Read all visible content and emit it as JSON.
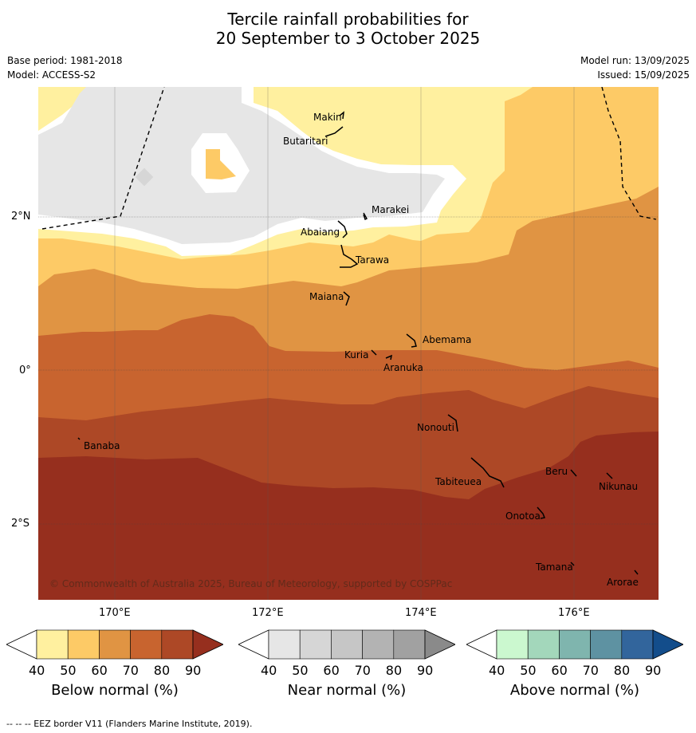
{
  "title_line1": "Tercile rainfall probabilities for",
  "title_line2": "20 September to 3 October 2025",
  "base_period": "Base period: 1981-2018",
  "model": "Model: ACCESS-S2",
  "model_run": "Model run: 13/09/2025",
  "issued": "Issued: 15/09/2025",
  "copyright": "© Commonwealth of Australia 2025, Bureau of Meteorology, supported by COSPPac",
  "lat_labels": [
    "2°N",
    "0°",
    "2°S"
  ],
  "lon_labels": [
    "170°E",
    "172°E",
    "174°E",
    "176°E"
  ],
  "places": [
    {
      "name": "Makin"
    },
    {
      "name": "Butaritari"
    },
    {
      "name": "Marakei"
    },
    {
      "name": "Abaiang"
    },
    {
      "name": "Tarawa"
    },
    {
      "name": "Maiana"
    },
    {
      "name": "Abemama"
    },
    {
      "name": "Kuria"
    },
    {
      "name": "Aranuka"
    },
    {
      "name": "Nonouti"
    },
    {
      "name": "Banaba"
    },
    {
      "name": "Tabiteuea"
    },
    {
      "name": "Beru"
    },
    {
      "name": "Nikunau"
    },
    {
      "name": "Onotoa"
    },
    {
      "name": "Tamana"
    },
    {
      "name": "Arorae"
    }
  ],
  "colorbars": [
    {
      "title": "Below normal (%)",
      "ticks": [
        "40",
        "50",
        "60",
        "70",
        "80",
        "90"
      ],
      "colors": [
        "#ffffff",
        "#fff09f",
        "#fdca66",
        "#e09443",
        "#c8642f",
        "#ad4826",
        "#962f1e"
      ]
    },
    {
      "title": "Near normal (%)",
      "ticks": [
        "40",
        "50",
        "60",
        "70",
        "80",
        "90"
      ],
      "colors": [
        "#ffffff",
        "#e6e6e6",
        "#d6d6d6",
        "#c6c6c6",
        "#b3b3b3",
        "#a1a1a1",
        "#8a8a8a"
      ]
    },
    {
      "title": "Above normal (%)",
      "ticks": [
        "40",
        "50",
        "60",
        "70",
        "80",
        "90"
      ],
      "colors": [
        "#ffffff",
        "#cbf8cf",
        "#a3d7bb",
        "#7fb5ae",
        "#5e92a2",
        "#32659c",
        "#134d8b"
      ]
    }
  ],
  "footer": "--  --  -- EEZ border V11 (Flanders Marine Institute, 2019)."
}
